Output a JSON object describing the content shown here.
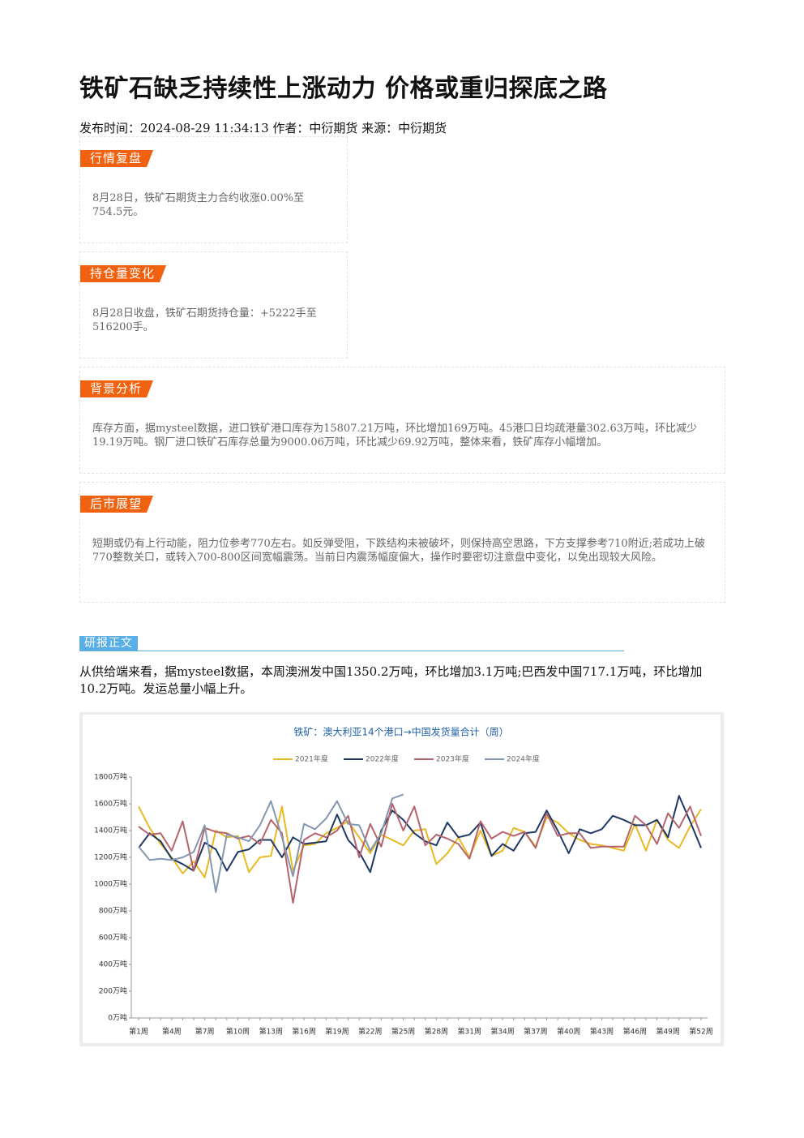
{
  "header": {
    "title": "铁矿石缺乏持续性上涨动力 价格或重归探底之路",
    "meta": "发布时间：2024-08-29 11:34:13 作者：中衍期货 来源：中衍期货"
  },
  "sections": [
    {
      "tag": "行情复盘",
      "text": "8月28日，铁矿石期货主力合约收涨0.00%至754.5元。"
    },
    {
      "tag": "持仓量变化",
      "text": "8月28日收盘，铁矿石期货持仓量：+5222手至516200手。"
    },
    {
      "tag": "背景分析",
      "text": "库存方面，据mysteel数据，进口铁矿港口库存为15807.21万吨，环比增加169万吨。45港口日均疏港量302.63万吨，环比减少19.19万吨。钢厂进口铁矿石库存总量为9000.06万吨，环比减少69.92万吨，整体来看，铁矿库存小幅增加。"
    },
    {
      "tag": "后市展望",
      "text": "短期或仍有上行动能，阻力位参考770左右。如反弹受阻，下跌结构未被破坏，则保持高空思路，下方支撑参考710附近;若成功上破770整数关口，或转入700-800区间宽幅震荡。当前日内震荡幅度偏大，操作时要密切注意盘中变化，以免出现较大风险。"
    }
  ],
  "body": {
    "tag": "研报正文",
    "text": "从供给端来看，据mysteel数据，本周澳洲发中国1350.2万吨，环比增加3.1万吨;巴西发中国717.1万吨，环比增加10.2万吨。发运总量小幅上升。"
  },
  "chart_data": {
    "type": "line",
    "title": "铁矿：澳大利亚14个港口→中国发货量合计（周）",
    "categories": [
      "第1周",
      null,
      null,
      "第4周",
      null,
      null,
      "第7周",
      null,
      null,
      "第10周",
      null,
      null,
      "第13周",
      null,
      null,
      "第16周",
      null,
      null,
      "第19周",
      null,
      null,
      "第22周",
      null,
      null,
      "第25周",
      null,
      null,
      "第28周",
      null,
      null,
      "第31周",
      null,
      null,
      "第34周",
      null,
      null,
      "第37周",
      null,
      null,
      "第40周",
      null,
      null,
      "第43周",
      null,
      null,
      "第46周",
      null,
      null,
      "第49周",
      null,
      null,
      "第52周"
    ],
    "series": [
      {
        "name": "2021年度",
        "color": "#e8b923",
        "values": [
          1580,
          1420,
          1300,
          1200,
          1080,
          1170,
          1050,
          1400,
          1350,
          1360,
          1090,
          1200,
          1210,
          1580,
          1100,
          1290,
          1300,
          1380,
          1420,
          1470,
          1350,
          1230,
          1370,
          1330,
          1290,
          1400,
          1410,
          1150,
          1230,
          1350,
          1200,
          1400,
          1210,
          1250,
          1420,
          1390,
          1280,
          1500,
          1460,
          1380,
          1330,
          1300,
          1290,
          1270,
          1250,
          1450,
          1250,
          1480,
          1330,
          1270,
          1430,
          1560
        ]
      },
      {
        "name": "2022年度",
        "color": "#1f3864",
        "values": [
          1270,
          1380,
          1320,
          1190,
          1150,
          1100,
          1310,
          1260,
          1100,
          1240,
          1260,
          1330,
          1330,
          1200,
          1350,
          1300,
          1310,
          1320,
          1520,
          1330,
          1240,
          1090,
          1400,
          1550,
          1480,
          1380,
          1320,
          1290,
          1460,
          1350,
          1370,
          1460,
          1210,
          1300,
          1250,
          1380,
          1390,
          1550,
          1400,
          1230,
          1410,
          1380,
          1410,
          1510,
          1480,
          1440,
          1440,
          1480,
          1350,
          1660,
          1470,
          1270
        ]
      },
      {
        "name": "2023年度",
        "color": "#b5646b",
        "values": [
          1430,
          1370,
          1380,
          1250,
          1470,
          1100,
          1420,
          1390,
          1380,
          1340,
          1360,
          1300,
          1480,
          1380,
          860,
          1330,
          1380,
          1350,
          1400,
          1510,
          1200,
          1450,
          1280,
          1600,
          1400,
          1580,
          1290,
          1370,
          1340,
          1300,
          1190,
          1470,
          1340,
          1390,
          1360,
          1390,
          1270,
          1530,
          1360,
          1380,
          1380,
          1270,
          1280,
          1280,
          1280,
          1510,
          1440,
          1300,
          1530,
          1420,
          1580,
          1360
        ]
      },
      {
        "name": "2024年度",
        "color": "#8497b0",
        "values": [
          1280,
          1180,
          1190,
          1180,
          1200,
          1240,
          1440,
          940,
          1370,
          1350,
          1320,
          1440,
          1620,
          1350,
          1060,
          1450,
          1410,
          1490,
          1620,
          1450,
          1440,
          1250,
          1380,
          1640,
          1670,
          null,
          null,
          null,
          null,
          null,
          null,
          null,
          null,
          null,
          null,
          null,
          null,
          null,
          null,
          null,
          null,
          null,
          null,
          null,
          null,
          null,
          null,
          null,
          null,
          null,
          null,
          null
        ]
      }
    ],
    "ylim": [
      0,
      1800
    ],
    "yticks": [
      {
        "value": 0,
        "label": "0万吨"
      },
      {
        "value": 200,
        "label": "200万吨"
      },
      {
        "value": 400,
        "label": "400万吨"
      },
      {
        "value": 600,
        "label": "600万吨"
      },
      {
        "value": 800,
        "label": "800万吨"
      },
      {
        "value": 1000,
        "label": "1000万吨"
      },
      {
        "value": 1200,
        "label": "1200万吨"
      },
      {
        "value": 1400,
        "label": "1400万吨"
      },
      {
        "value": 1600,
        "label": "1600万吨"
      },
      {
        "value": 1800,
        "label": "1800万吨"
      }
    ],
    "grid": false
  }
}
